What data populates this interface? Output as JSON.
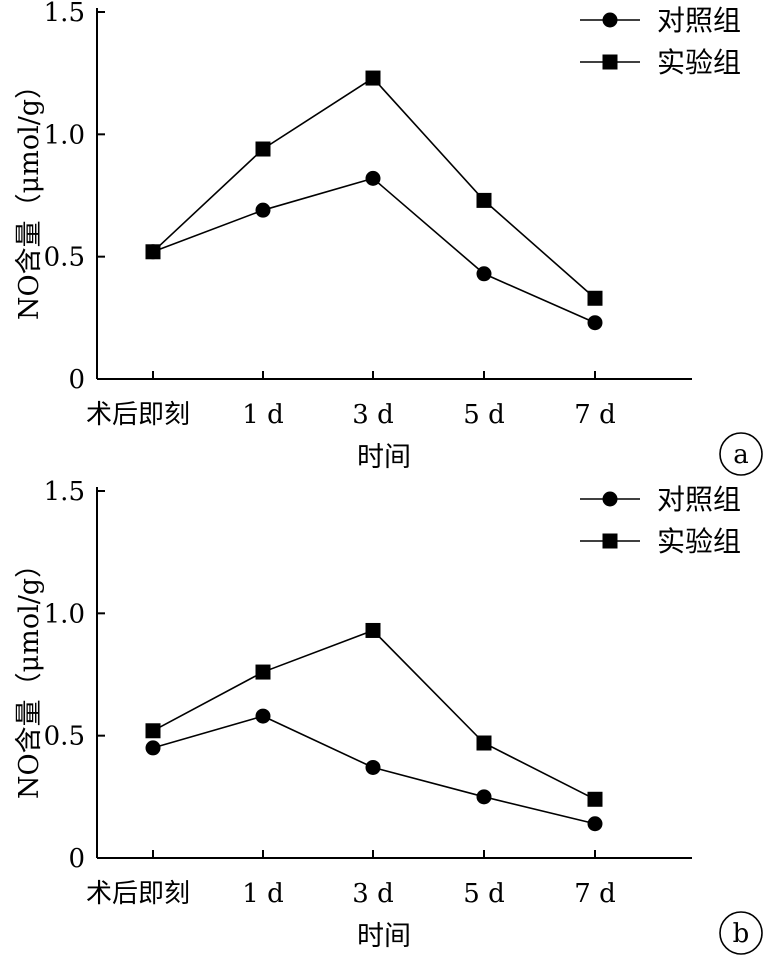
{
  "chart_data": [
    {
      "type": "line",
      "panel_label": "a",
      "categories": [
        "术后即刻",
        "1 d",
        "3 d",
        "5 d",
        "7 d"
      ],
      "series": [
        {
          "name": "对照组",
          "marker": "circle",
          "values": [
            0.52,
            0.69,
            0.82,
            0.43,
            0.23
          ]
        },
        {
          "name": "实验组",
          "marker": "square",
          "values": [
            0.52,
            0.94,
            1.23,
            0.73,
            0.33
          ]
        }
      ],
      "xlabel": "时间",
      "ylabel": "NO含量（μmol/g）",
      "ylim": [
        0,
        1.5
      ],
      "yticks": [
        "0",
        "0.5",
        "1.0",
        "1.5"
      ],
      "legend_position": "top-right",
      "grid": false
    },
    {
      "type": "line",
      "panel_label": "b",
      "categories": [
        "术后即刻",
        "1 d",
        "3 d",
        "5 d",
        "7 d"
      ],
      "series": [
        {
          "name": "对照组",
          "marker": "circle",
          "values": [
            0.45,
            0.58,
            0.37,
            0.25,
            0.14
          ]
        },
        {
          "name": "实验组",
          "marker": "square",
          "values": [
            0.52,
            0.76,
            0.93,
            0.47,
            0.24
          ]
        }
      ],
      "xlabel": "时间",
      "ylabel": "NO含量（μmol/g）",
      "ylim": [
        0,
        1.5
      ],
      "yticks": [
        "0",
        "0.5",
        "1.0",
        "1.5"
      ],
      "legend_position": "top-right",
      "grid": false
    }
  ]
}
